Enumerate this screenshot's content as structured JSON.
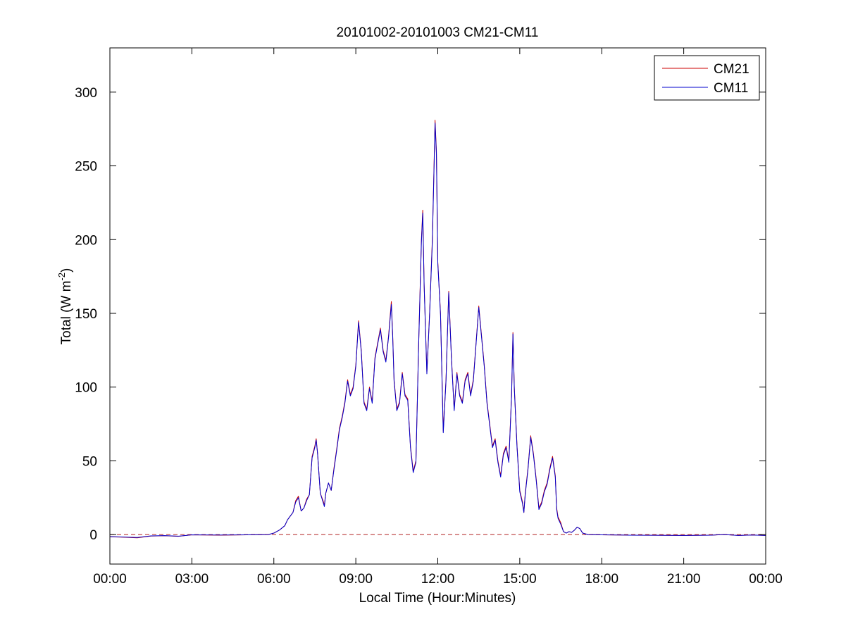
{
  "chart_data": {
    "type": "line",
    "title": "20101002-20101003 CM21-CM11",
    "xlabel": "Local Time (Hour:Minutes)",
    "ylabel": {
      "text": "Total (W m",
      "superscript": "-2",
      "suffix": ")"
    },
    "xlim": [
      0,
      24
    ],
    "ylim": [
      -20,
      330
    ],
    "x_tick_values": [
      0,
      3,
      6,
      9,
      12,
      15,
      18,
      21,
      24
    ],
    "x_tick_labels": [
      "00:00",
      "03:00",
      "06:00",
      "09:00",
      "12:00",
      "15:00",
      "18:00",
      "21:00",
      "00:00"
    ],
    "y_tick_values": [
      0,
      50,
      100,
      150,
      200,
      250,
      300
    ],
    "y_tick_labels": [
      "0",
      "50",
      "100",
      "150",
      "200",
      "250",
      "300"
    ],
    "grid": false,
    "legend_position": "top-right",
    "reference_line": {
      "y": 0,
      "style": "dashed",
      "color": "#b22222"
    },
    "series": [
      {
        "name": "CM21",
        "color": "#cc0000",
        "points": [
          [
            0,
            -1.5
          ],
          [
            0.5,
            -1.8
          ],
          [
            1.0,
            -2.2
          ],
          [
            1.5,
            -1.0
          ],
          [
            2.0,
            -0.8
          ],
          [
            2.5,
            -1.2
          ],
          [
            3.0,
            -0.2
          ],
          [
            4.0,
            -0.4
          ],
          [
            5.0,
            -0.2
          ],
          [
            5.8,
            0
          ],
          [
            6.0,
            1
          ],
          [
            6.2,
            3
          ],
          [
            6.4,
            6
          ],
          [
            6.5,
            10
          ],
          [
            6.7,
            15
          ],
          [
            6.8,
            23
          ],
          [
            6.9,
            26
          ],
          [
            7.0,
            16
          ],
          [
            7.1,
            18
          ],
          [
            7.2,
            24
          ],
          [
            7.3,
            27
          ],
          [
            7.4,
            53
          ],
          [
            7.5,
            60
          ],
          [
            7.55,
            65
          ],
          [
            7.6,
            55
          ],
          [
            7.7,
            28
          ],
          [
            7.8,
            23
          ],
          [
            7.85,
            20
          ],
          [
            7.9,
            28
          ],
          [
            8.0,
            35
          ],
          [
            8.1,
            30
          ],
          [
            8.2,
            45
          ],
          [
            8.3,
            58
          ],
          [
            8.4,
            72
          ],
          [
            8.5,
            80
          ],
          [
            8.6,
            90
          ],
          [
            8.7,
            105
          ],
          [
            8.8,
            95
          ],
          [
            8.9,
            100
          ],
          [
            9.0,
            115
          ],
          [
            9.1,
            145
          ],
          [
            9.2,
            125
          ],
          [
            9.3,
            90
          ],
          [
            9.4,
            85
          ],
          [
            9.5,
            100
          ],
          [
            9.6,
            90
          ],
          [
            9.7,
            120
          ],
          [
            9.8,
            130
          ],
          [
            9.9,
            140
          ],
          [
            10.0,
            125
          ],
          [
            10.1,
            118
          ],
          [
            10.2,
            135
          ],
          [
            10.3,
            158
          ],
          [
            10.35,
            135
          ],
          [
            10.4,
            105
          ],
          [
            10.5,
            85
          ],
          [
            10.6,
            90
          ],
          [
            10.7,
            110
          ],
          [
            10.8,
            95
          ],
          [
            10.9,
            92
          ],
          [
            11.0,
            60
          ],
          [
            11.1,
            43
          ],
          [
            11.2,
            50
          ],
          [
            11.3,
            130
          ],
          [
            11.4,
            200
          ],
          [
            11.45,
            220
          ],
          [
            11.5,
            170
          ],
          [
            11.6,
            110
          ],
          [
            11.7,
            150
          ],
          [
            11.8,
            200
          ],
          [
            11.85,
            240
          ],
          [
            11.9,
            281
          ],
          [
            11.95,
            260
          ],
          [
            12.0,
            185
          ],
          [
            12.1,
            150
          ],
          [
            12.2,
            70
          ],
          [
            12.3,
            105
          ],
          [
            12.4,
            165
          ],
          [
            12.5,
            120
          ],
          [
            12.6,
            85
          ],
          [
            12.7,
            110
          ],
          [
            12.8,
            95
          ],
          [
            12.9,
            90
          ],
          [
            13.0,
            105
          ],
          [
            13.1,
            110
          ],
          [
            13.2,
            95
          ],
          [
            13.3,
            105
          ],
          [
            13.4,
            130
          ],
          [
            13.5,
            155
          ],
          [
            13.6,
            135
          ],
          [
            13.7,
            115
          ],
          [
            13.8,
            90
          ],
          [
            13.9,
            75
          ],
          [
            14.0,
            60
          ],
          [
            14.1,
            65
          ],
          [
            14.2,
            50
          ],
          [
            14.3,
            40
          ],
          [
            14.4,
            55
          ],
          [
            14.5,
            60
          ],
          [
            14.6,
            50
          ],
          [
            14.7,
            95
          ],
          [
            14.75,
            137
          ],
          [
            14.8,
            100
          ],
          [
            14.9,
            60
          ],
          [
            15.0,
            30
          ],
          [
            15.1,
            22
          ],
          [
            15.15,
            15
          ],
          [
            15.2,
            28
          ],
          [
            15.3,
            45
          ],
          [
            15.4,
            67
          ],
          [
            15.5,
            55
          ],
          [
            15.6,
            38
          ],
          [
            15.7,
            18
          ],
          [
            15.8,
            22
          ],
          [
            15.9,
            30
          ],
          [
            16.0,
            35
          ],
          [
            16.1,
            45
          ],
          [
            16.2,
            53
          ],
          [
            16.3,
            40
          ],
          [
            16.35,
            18
          ],
          [
            16.4,
            12
          ],
          [
            16.5,
            8
          ],
          [
            16.6,
            2
          ],
          [
            16.7,
            1
          ],
          [
            16.8,
            2
          ],
          [
            16.9,
            1.5
          ],
          [
            17.0,
            3
          ],
          [
            17.1,
            5
          ],
          [
            17.2,
            4
          ],
          [
            17.3,
            1
          ],
          [
            17.5,
            0
          ],
          [
            18.0,
            -0.2
          ],
          [
            19.0,
            -0.4
          ],
          [
            20.0,
            -0.5
          ],
          [
            21.0,
            -0.6
          ],
          [
            22.0,
            -0.4
          ],
          [
            22.5,
            0
          ],
          [
            23.0,
            -0.6
          ],
          [
            23.5,
            -0.3
          ],
          [
            24.0,
            -0.6
          ]
        ]
      },
      {
        "name": "CM11",
        "color": "#0000cc",
        "points": [
          [
            0,
            -1.4
          ],
          [
            0.5,
            -1.7
          ],
          [
            1.0,
            -2.0
          ],
          [
            1.5,
            -0.9
          ],
          [
            2.0,
            -0.7
          ],
          [
            2.5,
            -1.1
          ],
          [
            3.0,
            -0.2
          ],
          [
            4.0,
            -0.3
          ],
          [
            5.0,
            -0.2
          ],
          [
            5.8,
            0
          ],
          [
            6.0,
            1
          ],
          [
            6.2,
            3
          ],
          [
            6.4,
            6
          ],
          [
            6.5,
            10
          ],
          [
            6.7,
            15
          ],
          [
            6.8,
            22
          ],
          [
            6.9,
            25
          ],
          [
            7.0,
            16
          ],
          [
            7.1,
            18
          ],
          [
            7.2,
            23
          ],
          [
            7.3,
            27
          ],
          [
            7.4,
            52
          ],
          [
            7.5,
            59
          ],
          [
            7.55,
            64
          ],
          [
            7.6,
            55
          ],
          [
            7.7,
            28
          ],
          [
            7.8,
            22
          ],
          [
            7.85,
            19
          ],
          [
            7.9,
            28
          ],
          [
            8.0,
            35
          ],
          [
            8.1,
            30
          ],
          [
            8.2,
            44
          ],
          [
            8.3,
            57
          ],
          [
            8.4,
            71
          ],
          [
            8.5,
            79
          ],
          [
            8.6,
            89
          ],
          [
            8.7,
            104
          ],
          [
            8.8,
            94
          ],
          [
            8.9,
            99
          ],
          [
            9.0,
            114
          ],
          [
            9.1,
            144
          ],
          [
            9.2,
            124
          ],
          [
            9.3,
            89
          ],
          [
            9.4,
            84
          ],
          [
            9.5,
            99
          ],
          [
            9.6,
            89
          ],
          [
            9.7,
            119
          ],
          [
            9.8,
            129
          ],
          [
            9.9,
            139
          ],
          [
            10.0,
            124
          ],
          [
            10.1,
            117
          ],
          [
            10.2,
            134
          ],
          [
            10.3,
            156
          ],
          [
            10.35,
            134
          ],
          [
            10.4,
            104
          ],
          [
            10.5,
            84
          ],
          [
            10.6,
            89
          ],
          [
            10.7,
            109
          ],
          [
            10.8,
            94
          ],
          [
            10.9,
            91
          ],
          [
            11.0,
            59
          ],
          [
            11.1,
            42
          ],
          [
            11.2,
            49
          ],
          [
            11.3,
            129
          ],
          [
            11.4,
            198
          ],
          [
            11.45,
            218
          ],
          [
            11.5,
            169
          ],
          [
            11.6,
            109
          ],
          [
            11.7,
            149
          ],
          [
            11.8,
            198
          ],
          [
            11.85,
            238
          ],
          [
            11.9,
            279
          ],
          [
            11.95,
            258
          ],
          [
            12.0,
            184
          ],
          [
            12.1,
            149
          ],
          [
            12.2,
            69
          ],
          [
            12.3,
            104
          ],
          [
            12.4,
            164
          ],
          [
            12.5,
            119
          ],
          [
            12.6,
            84
          ],
          [
            12.7,
            109
          ],
          [
            12.8,
            94
          ],
          [
            12.9,
            89
          ],
          [
            13.0,
            104
          ],
          [
            13.1,
            109
          ],
          [
            13.2,
            94
          ],
          [
            13.3,
            104
          ],
          [
            13.4,
            129
          ],
          [
            13.5,
            154
          ],
          [
            13.6,
            134
          ],
          [
            13.7,
            114
          ],
          [
            13.8,
            89
          ],
          [
            13.9,
            74
          ],
          [
            14.0,
            59
          ],
          [
            14.1,
            64
          ],
          [
            14.2,
            49
          ],
          [
            14.3,
            39
          ],
          [
            14.4,
            54
          ],
          [
            14.5,
            59
          ],
          [
            14.6,
            49
          ],
          [
            14.7,
            94
          ],
          [
            14.75,
            136
          ],
          [
            14.8,
            99
          ],
          [
            14.9,
            59
          ],
          [
            15.0,
            29
          ],
          [
            15.1,
            21
          ],
          [
            15.15,
            15
          ],
          [
            15.2,
            27
          ],
          [
            15.3,
            44
          ],
          [
            15.4,
            66
          ],
          [
            15.5,
            54
          ],
          [
            15.6,
            37
          ],
          [
            15.7,
            17
          ],
          [
            15.8,
            21
          ],
          [
            15.9,
            29
          ],
          [
            16.0,
            34
          ],
          [
            16.1,
            44
          ],
          [
            16.2,
            52
          ],
          [
            16.3,
            39
          ],
          [
            16.35,
            17
          ],
          [
            16.4,
            11
          ],
          [
            16.5,
            7
          ],
          [
            16.6,
            2
          ],
          [
            16.7,
            1
          ],
          [
            16.8,
            2
          ],
          [
            16.9,
            1.5
          ],
          [
            17.0,
            3
          ],
          [
            17.1,
            5
          ],
          [
            17.2,
            4
          ],
          [
            17.3,
            1
          ],
          [
            17.5,
            0
          ],
          [
            18.0,
            -0.2
          ],
          [
            19.0,
            -0.4
          ],
          [
            20.0,
            -0.5
          ],
          [
            21.0,
            -0.6
          ],
          [
            22.0,
            -0.4
          ],
          [
            22.5,
            0
          ],
          [
            23.0,
            -0.6
          ],
          [
            23.5,
            -0.3
          ],
          [
            24.0,
            -0.6
          ]
        ]
      }
    ]
  }
}
